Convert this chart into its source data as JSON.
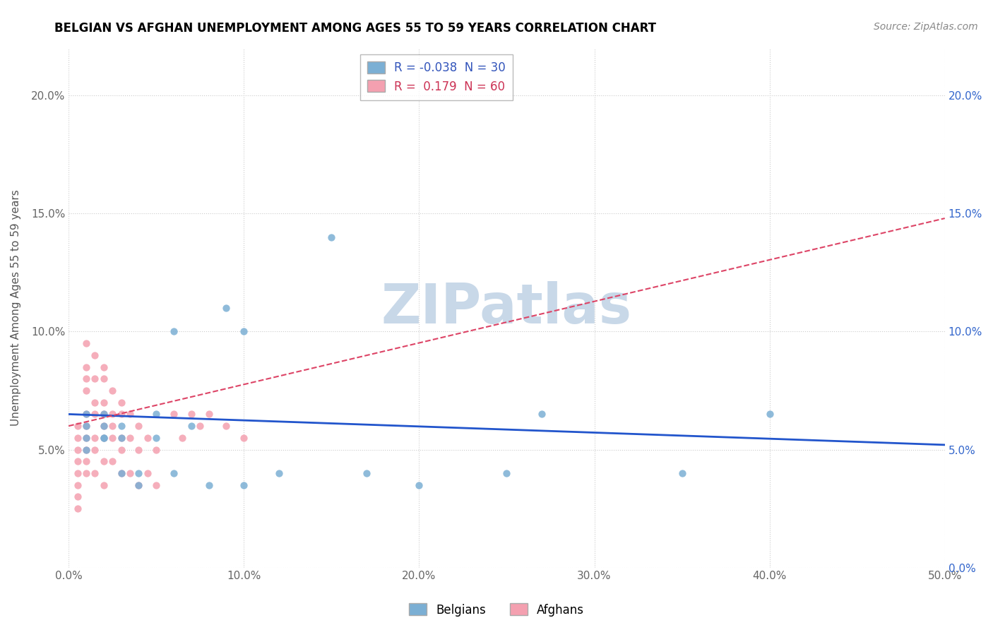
{
  "title": "BELGIAN VS AFGHAN UNEMPLOYMENT AMONG AGES 55 TO 59 YEARS CORRELATION CHART",
  "source": "Source: ZipAtlas.com",
  "ylabel": "Unemployment Among Ages 55 to 59 years",
  "xlim": [
    0.0,
    0.5
  ],
  "ylim": [
    0.0,
    0.22
  ],
  "xticks": [
    0.0,
    0.1,
    0.2,
    0.3,
    0.4,
    0.5
  ],
  "yticks": [
    0.0,
    0.05,
    0.1,
    0.15,
    0.2
  ],
  "xticklabels": [
    "0.0%",
    "10.0%",
    "20.0%",
    "30.0%",
    "40.0%",
    "50.0%"
  ],
  "yticklabels_left": [
    "",
    "5.0%",
    "10.0%",
    "15.0%",
    "20.0%"
  ],
  "yticklabels_right": [
    "0.0%",
    "5.0%",
    "10.0%",
    "15.0%",
    "20.0%"
  ],
  "belgian_R": -0.038,
  "belgian_N": 30,
  "afghan_R": 0.179,
  "afghan_N": 60,
  "belgian_color": "#7BAFD4",
  "afghan_color": "#F4A0B0",
  "belgian_line_color": "#2255CC",
  "afghan_line_color": "#DD4466",
  "watermark": "ZIPatlas",
  "watermark_color": "#C8D8E8",
  "belgian_line_x0": 0.0,
  "belgian_line_y0": 0.065,
  "belgian_line_x1": 0.5,
  "belgian_line_y1": 0.052,
  "afghan_line_x0": 0.0,
  "afghan_line_y0": 0.06,
  "afghan_line_x1": 0.5,
  "afghan_line_y1": 0.148,
  "belgian_x": [
    0.01,
    0.01,
    0.01,
    0.01,
    0.02,
    0.02,
    0.02,
    0.02,
    0.03,
    0.03,
    0.03,
    0.04,
    0.04,
    0.05,
    0.05,
    0.06,
    0.06,
    0.07,
    0.08,
    0.09,
    0.1,
    0.1,
    0.12,
    0.15,
    0.17,
    0.2,
    0.25,
    0.27,
    0.35,
    0.4
  ],
  "belgian_y": [
    0.055,
    0.05,
    0.065,
    0.06,
    0.06,
    0.055,
    0.065,
    0.055,
    0.06,
    0.055,
    0.04,
    0.04,
    0.035,
    0.055,
    0.065,
    0.04,
    0.1,
    0.06,
    0.035,
    0.11,
    0.035,
    0.1,
    0.04,
    0.14,
    0.04,
    0.035,
    0.04,
    0.065,
    0.04,
    0.065
  ],
  "afghan_x": [
    0.005,
    0.005,
    0.005,
    0.005,
    0.005,
    0.005,
    0.005,
    0.005,
    0.01,
    0.01,
    0.01,
    0.01,
    0.01,
    0.01,
    0.01,
    0.01,
    0.01,
    0.01,
    0.015,
    0.015,
    0.015,
    0.015,
    0.015,
    0.015,
    0.015,
    0.02,
    0.02,
    0.02,
    0.02,
    0.02,
    0.02,
    0.02,
    0.02,
    0.025,
    0.025,
    0.025,
    0.025,
    0.025,
    0.03,
    0.03,
    0.03,
    0.03,
    0.03,
    0.035,
    0.035,
    0.035,
    0.04,
    0.04,
    0.04,
    0.045,
    0.045,
    0.05,
    0.05,
    0.06,
    0.065,
    0.07,
    0.075,
    0.08,
    0.09,
    0.1
  ],
  "afghan_y": [
    0.06,
    0.055,
    0.05,
    0.045,
    0.04,
    0.035,
    0.03,
    0.025,
    0.095,
    0.085,
    0.08,
    0.075,
    0.065,
    0.06,
    0.055,
    0.05,
    0.045,
    0.04,
    0.09,
    0.08,
    0.07,
    0.065,
    0.055,
    0.05,
    0.04,
    0.085,
    0.08,
    0.07,
    0.065,
    0.06,
    0.055,
    0.045,
    0.035,
    0.075,
    0.065,
    0.06,
    0.055,
    0.045,
    0.07,
    0.065,
    0.055,
    0.05,
    0.04,
    0.065,
    0.055,
    0.04,
    0.06,
    0.05,
    0.035,
    0.055,
    0.04,
    0.05,
    0.035,
    0.065,
    0.055,
    0.065,
    0.06,
    0.065,
    0.06,
    0.055
  ]
}
